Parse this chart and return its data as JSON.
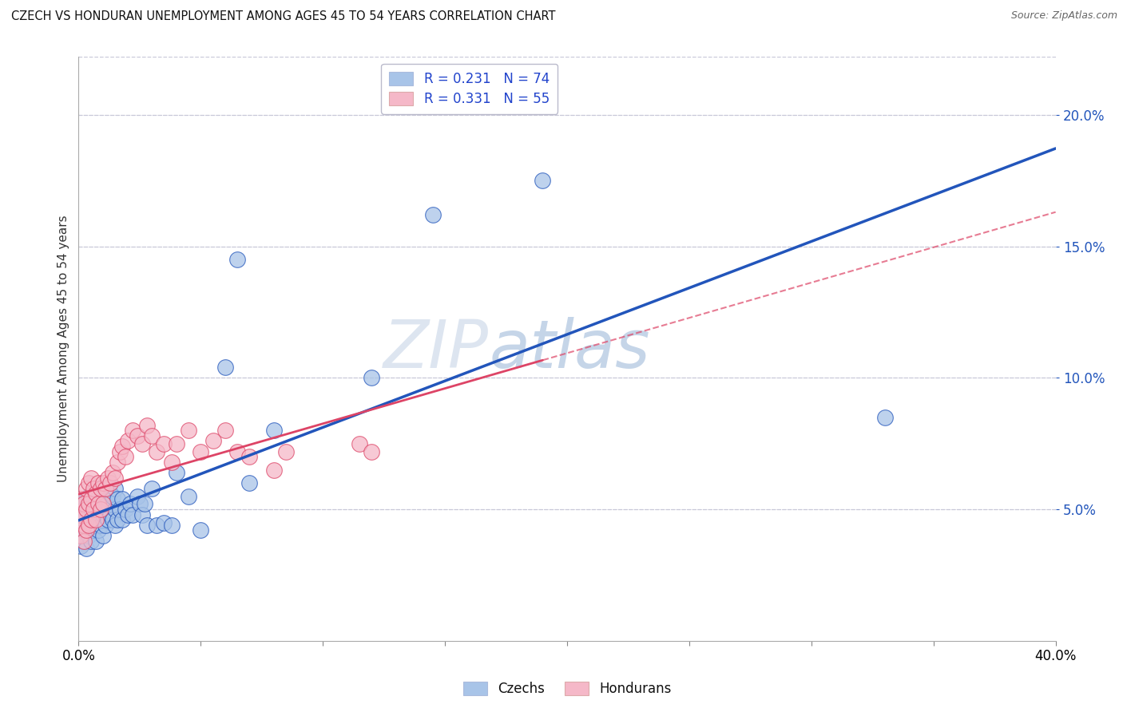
{
  "title": "CZECH VS HONDURAN UNEMPLOYMENT AMONG AGES 45 TO 54 YEARS CORRELATION CHART",
  "source": "Source: ZipAtlas.com",
  "ylabel": "Unemployment Among Ages 45 to 54 years",
  "ylabel_right_ticks": [
    "5.0%",
    "10.0%",
    "15.0%",
    "20.0%"
  ],
  "ylabel_right_vals": [
    0.05,
    0.1,
    0.15,
    0.2
  ],
  "czech_color": "#a8c4e8",
  "honduran_color": "#f5b8c8",
  "czech_line_color": "#2255bb",
  "honduran_line_color": "#dd4466",
  "xlim": [
    0.0,
    0.4
  ],
  "ylim": [
    0.0,
    0.222
  ],
  "background_color": "#ffffff",
  "grid_color": "#c8c8d8",
  "czech_x": [
    0.0,
    0.001,
    0.001,
    0.001,
    0.002,
    0.002,
    0.002,
    0.002,
    0.003,
    0.003,
    0.003,
    0.003,
    0.004,
    0.004,
    0.004,
    0.004,
    0.005,
    0.005,
    0.005,
    0.006,
    0.006,
    0.006,
    0.007,
    0.007,
    0.007,
    0.007,
    0.008,
    0.008,
    0.008,
    0.009,
    0.009,
    0.01,
    0.01,
    0.01,
    0.011,
    0.011,
    0.012,
    0.012,
    0.013,
    0.013,
    0.014,
    0.014,
    0.015,
    0.015,
    0.015,
    0.016,
    0.016,
    0.017,
    0.018,
    0.018,
    0.019,
    0.02,
    0.021,
    0.022,
    0.024,
    0.025,
    0.026,
    0.027,
    0.028,
    0.03,
    0.032,
    0.035,
    0.038,
    0.04,
    0.045,
    0.05,
    0.06,
    0.065,
    0.07,
    0.08,
    0.12,
    0.145,
    0.19,
    0.33
  ],
  "czech_y": [
    0.044,
    0.036,
    0.04,
    0.048,
    0.038,
    0.042,
    0.046,
    0.05,
    0.035,
    0.042,
    0.048,
    0.054,
    0.04,
    0.045,
    0.05,
    0.055,
    0.038,
    0.044,
    0.05,
    0.042,
    0.048,
    0.054,
    0.038,
    0.044,
    0.05,
    0.058,
    0.042,
    0.048,
    0.055,
    0.044,
    0.05,
    0.04,
    0.048,
    0.055,
    0.044,
    0.052,
    0.046,
    0.054,
    0.048,
    0.056,
    0.046,
    0.055,
    0.044,
    0.05,
    0.058,
    0.046,
    0.054,
    0.05,
    0.046,
    0.054,
    0.05,
    0.048,
    0.052,
    0.048,
    0.055,
    0.052,
    0.048,
    0.052,
    0.044,
    0.058,
    0.044,
    0.045,
    0.044,
    0.064,
    0.055,
    0.042,
    0.104,
    0.145,
    0.06,
    0.08,
    0.1,
    0.162,
    0.175,
    0.085
  ],
  "honduran_x": [
    0.0,
    0.001,
    0.001,
    0.001,
    0.002,
    0.002,
    0.002,
    0.003,
    0.003,
    0.003,
    0.004,
    0.004,
    0.004,
    0.005,
    0.005,
    0.005,
    0.006,
    0.006,
    0.007,
    0.007,
    0.008,
    0.008,
    0.009,
    0.009,
    0.01,
    0.01,
    0.011,
    0.012,
    0.013,
    0.014,
    0.015,
    0.016,
    0.017,
    0.018,
    0.019,
    0.02,
    0.022,
    0.024,
    0.026,
    0.028,
    0.03,
    0.032,
    0.035,
    0.038,
    0.04,
    0.045,
    0.05,
    0.055,
    0.06,
    0.065,
    0.07,
    0.08,
    0.085,
    0.115,
    0.12
  ],
  "honduran_y": [
    0.046,
    0.04,
    0.048,
    0.054,
    0.038,
    0.044,
    0.052,
    0.042,
    0.05,
    0.058,
    0.044,
    0.052,
    0.06,
    0.046,
    0.054,
    0.062,
    0.05,
    0.058,
    0.046,
    0.056,
    0.052,
    0.06,
    0.05,
    0.058,
    0.052,
    0.06,
    0.058,
    0.062,
    0.06,
    0.064,
    0.062,
    0.068,
    0.072,
    0.074,
    0.07,
    0.076,
    0.08,
    0.078,
    0.075,
    0.082,
    0.078,
    0.072,
    0.075,
    0.068,
    0.075,
    0.08,
    0.072,
    0.076,
    0.08,
    0.072,
    0.07,
    0.065,
    0.072,
    0.075,
    0.072
  ]
}
